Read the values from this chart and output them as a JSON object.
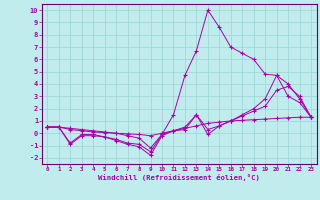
{
  "xlabel": "Windchill (Refroidissement éolien,°C)",
  "bg_color": "#c0ecee",
  "grid_color": "#a0d8da",
  "line_color": "#aa00aa",
  "spine_color": "#660066",
  "xlim": [
    -0.5,
    23.5
  ],
  "ylim": [
    -2.5,
    10.5
  ],
  "xticks": [
    0,
    1,
    2,
    3,
    4,
    5,
    6,
    7,
    8,
    9,
    10,
    11,
    12,
    13,
    14,
    15,
    16,
    17,
    18,
    19,
    20,
    21,
    22,
    23
  ],
  "yticks": [
    -2,
    -1,
    0,
    1,
    2,
    3,
    4,
    5,
    6,
    7,
    8,
    9,
    10
  ],
  "lines": [
    {
      "x": [
        0,
        1,
        2,
        3,
        4,
        5,
        6,
        7,
        8,
        9,
        10,
        11,
        12,
        13,
        14,
        15,
        16,
        17,
        18,
        19,
        20,
        21,
        22,
        23
      ],
      "y": [
        0.5,
        0.5,
        0.4,
        0.3,
        0.2,
        0.1,
        0.0,
        -0.2,
        -0.4,
        -1.2,
        -0.1,
        1.5,
        4.7,
        6.7,
        10.0,
        8.6,
        7.0,
        6.5,
        6.0,
        4.8,
        4.7,
        3.0,
        2.5,
        1.3
      ]
    },
    {
      "x": [
        0,
        1,
        2,
        3,
        4,
        5,
        6,
        7,
        8,
        9,
        10,
        11,
        12,
        13,
        14,
        15,
        16,
        17,
        18,
        19,
        20,
        21,
        22,
        23
      ],
      "y": [
        0.5,
        0.5,
        0.3,
        0.2,
        0.1,
        0.05,
        0.0,
        -0.05,
        -0.1,
        -0.2,
        0.0,
        0.2,
        0.4,
        0.6,
        0.8,
        0.9,
        1.0,
        1.05,
        1.1,
        1.15,
        1.2,
        1.25,
        1.3,
        1.3
      ]
    },
    {
      "x": [
        0,
        1,
        2,
        3,
        4,
        5,
        6,
        7,
        8,
        9,
        10,
        11,
        12,
        13,
        14,
        15,
        16,
        17,
        18,
        19,
        20,
        21,
        22,
        23
      ],
      "y": [
        0.5,
        0.5,
        -0.8,
        -0.1,
        -0.1,
        -0.3,
        -0.5,
        -0.8,
        -0.9,
        -1.5,
        -0.1,
        0.2,
        0.5,
        1.5,
        0.3,
        0.6,
        1.0,
        1.4,
        1.8,
        2.2,
        3.5,
        3.8,
        3.0,
        1.3
      ]
    },
    {
      "x": [
        0,
        1,
        2,
        3,
        4,
        5,
        6,
        7,
        8,
        9,
        10,
        11,
        12,
        13,
        14,
        15,
        16,
        17,
        18,
        19,
        20,
        21,
        22,
        23
      ],
      "y": [
        0.5,
        0.5,
        -0.9,
        -0.2,
        -0.2,
        -0.3,
        -0.6,
        -0.9,
        -1.1,
        -1.8,
        -0.2,
        0.2,
        0.3,
        1.5,
        -0.1,
        0.6,
        1.0,
        1.5,
        2.0,
        2.8,
        4.7,
        4.0,
        2.8,
        1.3
      ]
    }
  ]
}
